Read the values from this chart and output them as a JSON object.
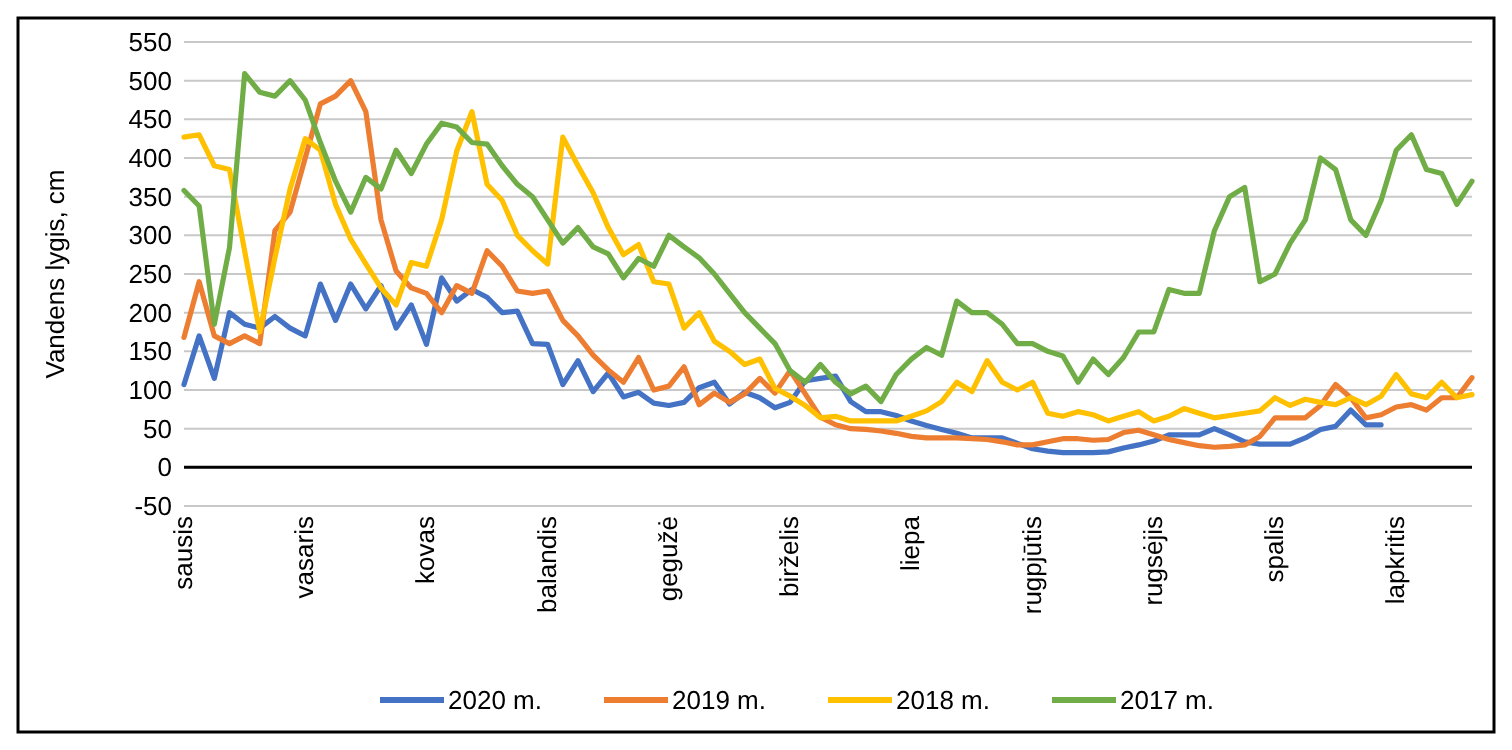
{
  "chart_data": {
    "type": "line",
    "ylabel": "Vandens lygis, cm",
    "ylim": [
      -50,
      550
    ],
    "yticks": [
      -50,
      0,
      50,
      100,
      150,
      200,
      250,
      300,
      350,
      400,
      450,
      500,
      550
    ],
    "categories": [
      "sausis",
      null,
      null,
      null,
      null,
      null,
      null,
      null,
      "vasaris",
      null,
      null,
      null,
      null,
      null,
      null,
      null,
      "kovas",
      null,
      null,
      null,
      null,
      null,
      null,
      null,
      "balandis",
      null,
      null,
      null,
      null,
      null,
      null,
      null,
      "gegužė",
      null,
      null,
      null,
      null,
      null,
      null,
      null,
      "birželis",
      null,
      null,
      null,
      null,
      null,
      null,
      null,
      "liepa",
      null,
      null,
      null,
      null,
      null,
      null,
      null,
      "rugpjūtis",
      null,
      null,
      null,
      null,
      null,
      null,
      null,
      "rugsėjis",
      null,
      null,
      null,
      null,
      null,
      null,
      null,
      "spalis",
      null,
      null,
      null,
      null,
      null,
      null,
      null,
      "lapkritis",
      null,
      null,
      null,
      null,
      null
    ],
    "grid": "y",
    "legend": "bottom",
    "line_style": "solid",
    "marker": "none",
    "series": [
      {
        "name": "2020 m.",
        "color": "#4472c4",
        "values": [
          107,
          170,
          115,
          200,
          185,
          180,
          195,
          180,
          170,
          237,
          190,
          237,
          205,
          235,
          180,
          210,
          159,
          245,
          215,
          230,
          220,
          200,
          202,
          160,
          159,
          107,
          138,
          98,
          122,
          91,
          97,
          83,
          80,
          84,
          103,
          110,
          82,
          97,
          90,
          77,
          84,
          112,
          115,
          118,
          85,
          72,
          72,
          67,
          60,
          54,
          49,
          44,
          38,
          38,
          38,
          31,
          24,
          21,
          19,
          19,
          19,
          20,
          25,
          29,
          34,
          42,
          42,
          42,
          50,
          42,
          33,
          30,
          30,
          30,
          38,
          49,
          53,
          74,
          55,
          55,
          null,
          null,
          null,
          null,
          null,
          null
        ]
      },
      {
        "name": "2019 m.",
        "color": "#ed7d31",
        "values": [
          168,
          240,
          170,
          160,
          170,
          160,
          306,
          330,
          400,
          470,
          480,
          500,
          460,
          320,
          254,
          232,
          225,
          200,
          235,
          225,
          280,
          260,
          228,
          225,
          228,
          190,
          170,
          145,
          126,
          110,
          142,
          100,
          105,
          130,
          81,
          96,
          84,
          95,
          115,
          96,
          125,
          95,
          65,
          55,
          50,
          49,
          47,
          44,
          40,
          38,
          38,
          38,
          37,
          36,
          33,
          29,
          29,
          33,
          37,
          37,
          35,
          36,
          45,
          48,
          42,
          36,
          32,
          28,
          26,
          27,
          29,
          40,
          64,
          64,
          64,
          80,
          107,
          90,
          64,
          68,
          78,
          81,
          74,
          90,
          90,
          116
        ]
      },
      {
        "name": "2018 m.",
        "color": "#ffc000",
        "values": [
          427,
          430,
          390,
          385,
          280,
          175,
          271,
          360,
          425,
          410,
          340,
          295,
          263,
          232,
          210,
          265,
          260,
          320,
          409,
          460,
          366,
          345,
          300,
          280,
          263,
          427,
          390,
          355,
          310,
          275,
          288,
          240,
          237,
          180,
          200,
          163,
          150,
          133,
          140,
          102,
          92,
          80,
          64,
          66,
          60,
          60,
          60,
          60,
          66,
          73,
          85,
          110,
          98,
          138,
          110,
          100,
          110,
          70,
          66,
          72,
          68,
          60,
          66,
          72,
          60,
          66,
          76,
          70,
          64,
          67,
          70,
          73,
          90,
          80,
          88,
          84,
          81,
          90,
          81,
          92,
          120,
          95,
          90,
          110,
          90,
          94
        ]
      },
      {
        "name": "2017 m.",
        "color": "#70ad47",
        "values": [
          358,
          338,
          185,
          284,
          509,
          485,
          480,
          500,
          475,
          420,
          370,
          330,
          375,
          360,
          410,
          380,
          418,
          445,
          440,
          420,
          418,
          390,
          366,
          350,
          320,
          290,
          310,
          285,
          276,
          245,
          270,
          260,
          300,
          285,
          271,
          250,
          225,
          200,
          180,
          160,
          125,
          110,
          133,
          110,
          95,
          105,
          85,
          120,
          140,
          155,
          145,
          215,
          200,
          200,
          185,
          160,
          160,
          150,
          144,
          110,
          140,
          120,
          142,
          175,
          175,
          230,
          225,
          225,
          306,
          350,
          362,
          240,
          250,
          290,
          320,
          400,
          385,
          320,
          300,
          345,
          410,
          430,
          385,
          380,
          340,
          370
        ]
      }
    ]
  }
}
